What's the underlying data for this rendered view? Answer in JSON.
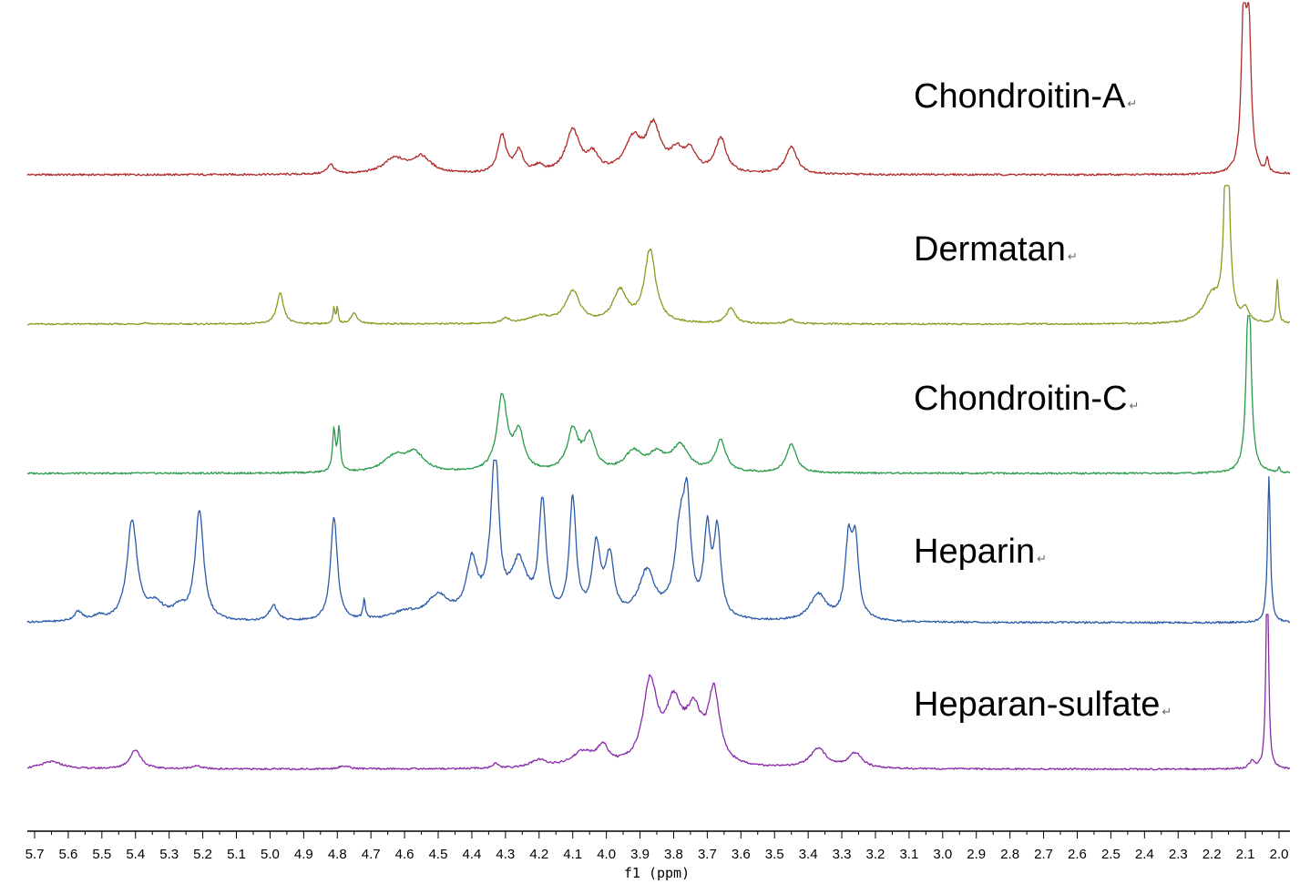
{
  "chart_data": {
    "type": "line",
    "xlabel": "f1 (ppm)",
    "xlim": [
      5.75,
      2.0
    ],
    "x_reversed": true,
    "ticks": [
      "5.7",
      "5.6",
      "5.5",
      "5.4",
      "5.3",
      "5.2",
      "5.1",
      "5.0",
      "4.9",
      "4.8",
      "4.7",
      "4.6",
      "4.5",
      "4.4",
      "4.3",
      "4.2",
      "4.1",
      "4.0",
      "3.9",
      "3.8",
      "3.7",
      "3.6",
      "3.5",
      "3.4",
      "3.3",
      "3.2",
      "3.1",
      "3.0",
      "2.9",
      "2.8",
      "2.7",
      "2.6",
      "2.5",
      "2.4",
      "2.3",
      "2.2",
      "2.1",
      "2.0"
    ],
    "paragraph_mark": "↵",
    "series": [
      {
        "name": "Chondroitin-A",
        "color": "#b02a2a",
        "peaks": [
          {
            "x": 4.82,
            "h": 0.06,
            "w": 0.012
          },
          {
            "x": 4.63,
            "h": 0.09,
            "w": 0.04
          },
          {
            "x": 4.55,
            "h": 0.1,
            "w": 0.035
          },
          {
            "x": 4.31,
            "h": 0.23,
            "w": 0.015
          },
          {
            "x": 4.26,
            "h": 0.13,
            "w": 0.015
          },
          {
            "x": 4.2,
            "h": 0.04,
            "w": 0.015
          },
          {
            "x": 4.1,
            "h": 0.26,
            "w": 0.025
          },
          {
            "x": 4.04,
            "h": 0.1,
            "w": 0.02
          },
          {
            "x": 3.92,
            "h": 0.2,
            "w": 0.03
          },
          {
            "x": 3.86,
            "h": 0.27,
            "w": 0.025
          },
          {
            "x": 3.79,
            "h": 0.12,
            "w": 0.025
          },
          {
            "x": 3.75,
            "h": 0.12,
            "w": 0.02
          },
          {
            "x": 3.66,
            "h": 0.21,
            "w": 0.02
          },
          {
            "x": 3.45,
            "h": 0.17,
            "w": 0.02
          },
          {
            "x": 2.105,
            "h": 1.0,
            "w": 0.008
          },
          {
            "x": 2.09,
            "h": 0.88,
            "w": 0.008
          },
          {
            "x": 2.035,
            "h": 0.08,
            "w": 0.004
          }
        ]
      },
      {
        "name": "Dermatan",
        "color": "#8a9a20",
        "peaks": [
          {
            "x": 5.37,
            "h": 0.01,
            "w": 0.01
          },
          {
            "x": 4.97,
            "h": 0.23,
            "w": 0.012
          },
          {
            "x": 4.81,
            "h": 0.12,
            "w": 0.003
          },
          {
            "x": 4.8,
            "h": 0.12,
            "w": 0.003
          },
          {
            "x": 4.75,
            "h": 0.08,
            "w": 0.012
          },
          {
            "x": 4.3,
            "h": 0.04,
            "w": 0.012
          },
          {
            "x": 4.2,
            "h": 0.05,
            "w": 0.04
          },
          {
            "x": 4.1,
            "h": 0.24,
            "w": 0.025
          },
          {
            "x": 3.96,
            "h": 0.24,
            "w": 0.025
          },
          {
            "x": 3.87,
            "h": 0.55,
            "w": 0.02
          },
          {
            "x": 3.63,
            "h": 0.12,
            "w": 0.015
          },
          {
            "x": 3.45,
            "h": 0.03,
            "w": 0.015
          },
          {
            "x": 2.2,
            "h": 0.2,
            "w": 0.03
          },
          {
            "x": 2.155,
            "h": 1.8,
            "w": 0.008
          },
          {
            "x": 2.1,
            "h": 0.1,
            "w": 0.01
          },
          {
            "x": 2.005,
            "h": 0.33,
            "w": 0.004
          }
        ]
      },
      {
        "name": "Chondroitin-C",
        "color": "#2a9a4a",
        "peaks": [
          {
            "x": 4.81,
            "h": 0.28,
            "w": 0.005
          },
          {
            "x": 4.795,
            "h": 0.28,
            "w": 0.005
          },
          {
            "x": 4.63,
            "h": 0.1,
            "w": 0.04
          },
          {
            "x": 4.57,
            "h": 0.12,
            "w": 0.035
          },
          {
            "x": 4.31,
            "h": 0.5,
            "w": 0.018
          },
          {
            "x": 4.26,
            "h": 0.25,
            "w": 0.018
          },
          {
            "x": 4.1,
            "h": 0.27,
            "w": 0.02
          },
          {
            "x": 4.05,
            "h": 0.23,
            "w": 0.02
          },
          {
            "x": 3.92,
            "h": 0.13,
            "w": 0.03
          },
          {
            "x": 3.85,
            "h": 0.11,
            "w": 0.03
          },
          {
            "x": 3.78,
            "h": 0.17,
            "w": 0.03
          },
          {
            "x": 3.66,
            "h": 0.21,
            "w": 0.018
          },
          {
            "x": 3.45,
            "h": 0.19,
            "w": 0.018
          },
          {
            "x": 2.09,
            "h": 1.35,
            "w": 0.008
          },
          {
            "x": 2.0,
            "h": 0.03,
            "w": 0.004
          }
        ]
      },
      {
        "name": "Heparin",
        "color": "#2a5aa8",
        "peaks": [
          {
            "x": 5.57,
            "h": 0.06,
            "w": 0.015
          },
          {
            "x": 5.51,
            "h": 0.03,
            "w": 0.02
          },
          {
            "x": 5.41,
            "h": 0.65,
            "w": 0.018
          },
          {
            "x": 5.34,
            "h": 0.1,
            "w": 0.03
          },
          {
            "x": 5.27,
            "h": 0.07,
            "w": 0.025
          },
          {
            "x": 5.21,
            "h": 0.71,
            "w": 0.015
          },
          {
            "x": 4.99,
            "h": 0.1,
            "w": 0.015
          },
          {
            "x": 4.81,
            "h": 0.68,
            "w": 0.012
          },
          {
            "x": 4.72,
            "h": 0.13,
            "w": 0.004
          },
          {
            "x": 4.6,
            "h": 0.05,
            "w": 0.05
          },
          {
            "x": 4.5,
            "h": 0.15,
            "w": 0.04
          },
          {
            "x": 4.4,
            "h": 0.35,
            "w": 0.02
          },
          {
            "x": 4.34,
            "h": 0.22,
            "w": 0.02
          },
          {
            "x": 4.33,
            "h": 0.9,
            "w": 0.012
          },
          {
            "x": 4.26,
            "h": 0.35,
            "w": 0.03
          },
          {
            "x": 4.19,
            "h": 0.73,
            "w": 0.013
          },
          {
            "x": 4.1,
            "h": 0.76,
            "w": 0.012
          },
          {
            "x": 4.03,
            "h": 0.45,
            "w": 0.015
          },
          {
            "x": 3.99,
            "h": 0.38,
            "w": 0.015
          },
          {
            "x": 3.88,
            "h": 0.3,
            "w": 0.03
          },
          {
            "x": 3.78,
            "h": 0.55,
            "w": 0.02
          },
          {
            "x": 3.76,
            "h": 0.6,
            "w": 0.012
          },
          {
            "x": 3.7,
            "h": 0.53,
            "w": 0.012
          },
          {
            "x": 3.67,
            "h": 0.55,
            "w": 0.012
          },
          {
            "x": 3.37,
            "h": 0.17,
            "w": 0.03
          },
          {
            "x": 3.28,
            "h": 0.48,
            "w": 0.012
          },
          {
            "x": 3.26,
            "h": 0.48,
            "w": 0.012
          },
          {
            "x": 2.03,
            "h": 0.94,
            "w": 0.005
          }
        ]
      },
      {
        "name": "Heparan-sulfate",
        "color": "#8a2aa8",
        "peaks": [
          {
            "x": 5.65,
            "h": 0.05,
            "w": 0.04
          },
          {
            "x": 5.4,
            "h": 0.13,
            "w": 0.02
          },
          {
            "x": 5.22,
            "h": 0.02,
            "w": 0.02
          },
          {
            "x": 4.78,
            "h": 0.02,
            "w": 0.02
          },
          {
            "x": 4.33,
            "h": 0.03,
            "w": 0.01
          },
          {
            "x": 4.2,
            "h": 0.05,
            "w": 0.03
          },
          {
            "x": 4.07,
            "h": 0.1,
            "w": 0.04
          },
          {
            "x": 4.01,
            "h": 0.12,
            "w": 0.02
          },
          {
            "x": 3.87,
            "h": 0.55,
            "w": 0.025
          },
          {
            "x": 3.8,
            "h": 0.38,
            "w": 0.03
          },
          {
            "x": 3.74,
            "h": 0.33,
            "w": 0.03
          },
          {
            "x": 3.68,
            "h": 0.48,
            "w": 0.02
          },
          {
            "x": 3.37,
            "h": 0.13,
            "w": 0.03
          },
          {
            "x": 3.26,
            "h": 0.1,
            "w": 0.025
          },
          {
            "x": 2.08,
            "h": 0.05,
            "w": 0.01
          },
          {
            "x": 2.035,
            "h": 1.65,
            "w": 0.004
          }
        ]
      }
    ]
  }
}
